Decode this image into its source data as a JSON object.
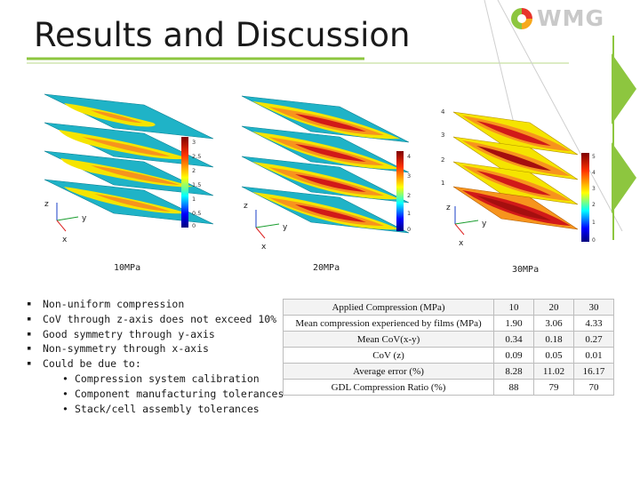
{
  "slide": {
    "title": "Results and Discussion",
    "accent_color": "#8dc63f",
    "logo": {
      "text": "WMG",
      "mark_colors": [
        "#e8352b",
        "#8dc63f",
        "#f7a81b"
      ]
    }
  },
  "figures": [
    {
      "caption": "10MPa",
      "colorbar_ticks": [
        "3",
        "2.5",
        "2",
        "1.5",
        "1",
        "0.5",
        "0"
      ],
      "axes": [
        "z",
        "y",
        "x"
      ]
    },
    {
      "caption": "20MPa",
      "colorbar_ticks": [
        "4",
        "3",
        "2",
        "1",
        "0"
      ],
      "axes": [
        "z",
        "y",
        "x"
      ]
    },
    {
      "caption": "30MPa",
      "layer_ticks": [
        "4",
        "3",
        "2",
        "1"
      ],
      "colorbar_ticks": [
        "5",
        "4",
        "3",
        "2",
        "1",
        "0"
      ],
      "axes": [
        "z",
        "y",
        "x"
      ]
    }
  ],
  "bullets": [
    {
      "text": "Non-uniform compression"
    },
    {
      "text": "CoV through z-axis does not exceed 10%"
    },
    {
      "text": "Good symmetry through y-axis"
    },
    {
      "text": "Non-symmetry through x-axis"
    },
    {
      "text": "Could be due to:",
      "sub": [
        "Compression system calibration",
        "Component manufacturing tolerances",
        "Stack/cell assembly tolerances"
      ]
    }
  ],
  "table": {
    "rows": [
      {
        "label": "Applied Compression (MPa)",
        "values": [
          "10",
          "20",
          "30"
        ]
      },
      {
        "label": "Mean compression experienced by films (MPa)",
        "values": [
          "1.90",
          "3.06",
          "4.33"
        ]
      },
      {
        "label": "Mean CoV(x-y)",
        "values": [
          "0.34",
          "0.18",
          "0.27"
        ]
      },
      {
        "label": "CoV (z)",
        "values": [
          "0.09",
          "0.05",
          "0.01"
        ]
      },
      {
        "label": "Average error (%)",
        "values": [
          "8.28",
          "11.02",
          "16.17"
        ]
      },
      {
        "label": "GDL Compression Ratio (%)",
        "values": [
          "88",
          "79",
          "70"
        ]
      }
    ]
  }
}
